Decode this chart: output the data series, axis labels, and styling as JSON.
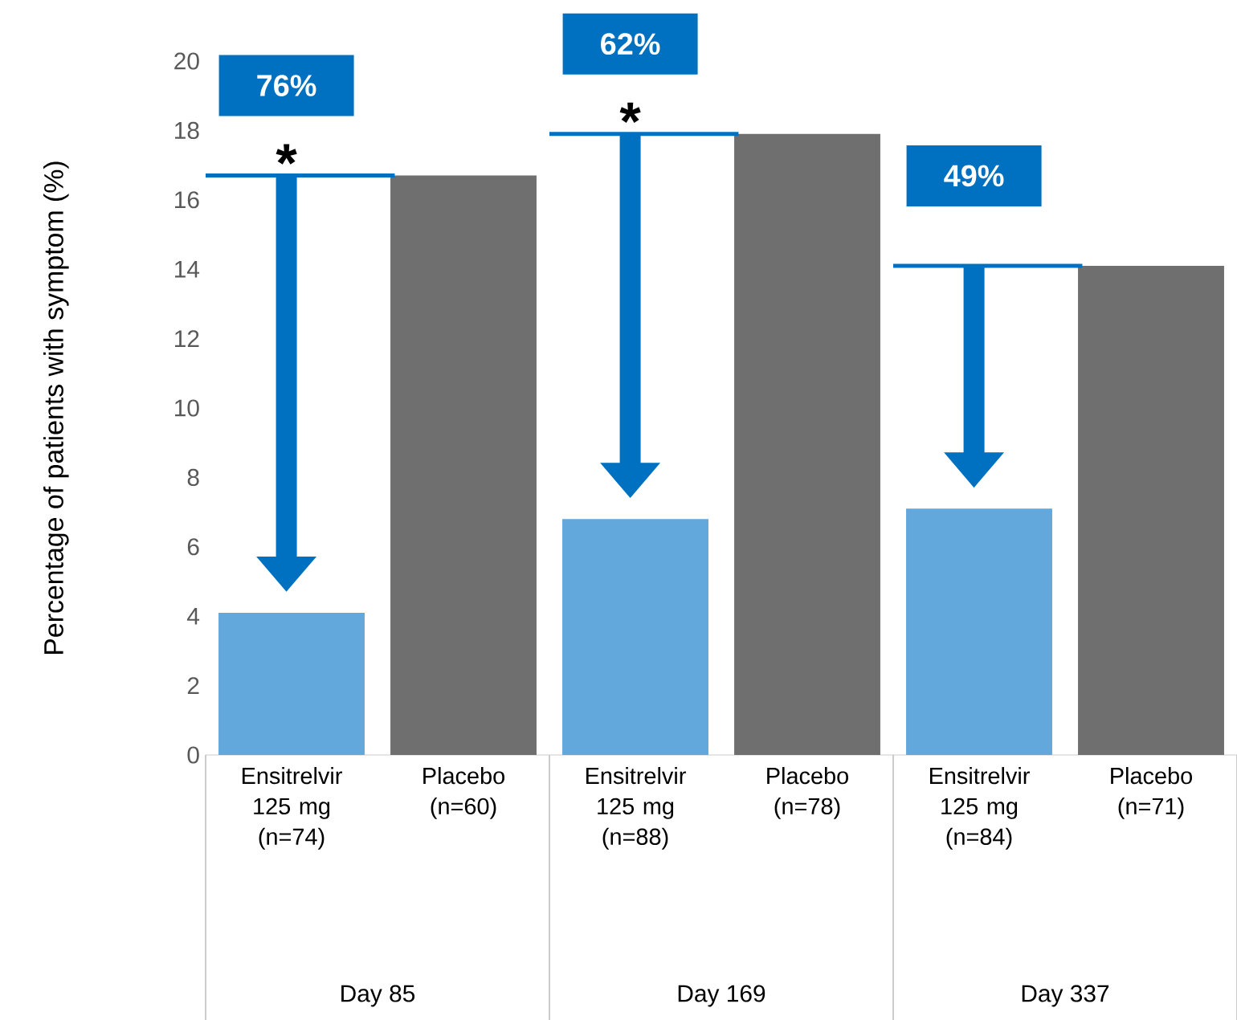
{
  "chart_data": {
    "type": "bar",
    "ylabel": "Percentage of patients with symptom (%)",
    "categories": [
      "Ensitrelvir 125 mg (n=74)",
      "Placebo (n=60)",
      "Ensitrelvir 125 mg (n=88)",
      "Placebo (n=78)",
      "Ensitrelvir 125 mg (n=84)",
      "Placebo (n=71)"
    ],
    "values": [
      4.1,
      16.7,
      6.8,
      17.9,
      7.1,
      14.1
    ],
    "colors": [
      "#62a8dc",
      "#6f6f6f",
      "#62a8dc",
      "#6f6f6f",
      "#62a8dc",
      "#6f6f6f"
    ],
    "ylim": [
      0,
      20
    ],
    "yticks": [
      0,
      2,
      4,
      6,
      8,
      10,
      12,
      14,
      16,
      18,
      20
    ],
    "annotations": [
      "76%",
      "62%",
      "49%",
      "*",
      "*",
      "Day 85",
      "Day 169",
      "Day 337"
    ]
  }
}
